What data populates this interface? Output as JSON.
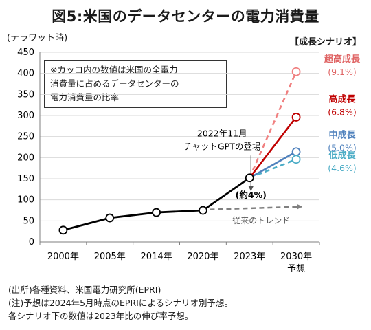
{
  "title": "図5:米国のデータセンターの電力消費量",
  "unit_label": "(テラワット時)",
  "scenario_header": "【成長シナリオ】",
  "note_box": [
    "※カッコ内の数値は米国の全電力",
    "消費量に占めるデータセンターの",
    "電力消費量の比率"
  ],
  "footnotes": [
    "(出所)各種資料、米国電力研究所(EPRI)",
    "(注)予想は2024年5月時点のEPRIによるシナリオ別予想。",
    "各シナリオ下の数値は2023年比の伸び率予想。"
  ],
  "chart_data": {
    "type": "line",
    "categories": [
      "2000年",
      "2005年",
      "2014年",
      "2020年",
      "2023年",
      "2030年"
    ],
    "category_sublabels": [
      "",
      "",
      "",
      "",
      "",
      "予想"
    ],
    "ylim": [
      0,
      450
    ],
    "yticks": [
      0,
      50,
      100,
      150,
      200,
      250,
      300,
      350,
      400,
      450
    ],
    "grid": true,
    "series": [
      {
        "name": "",
        "values": [
          28,
          57,
          70,
          75,
          152,
          null
        ],
        "color": "#000000",
        "style": "solid"
      },
      {
        "name": "超高成長",
        "label": "(9.1%)",
        "values": [
          null,
          null,
          null,
          null,
          152,
          404
        ],
        "color": "#f08080",
        "style": "dashed"
      },
      {
        "name": "高成長",
        "label": "(6.8%)",
        "values": [
          null,
          null,
          null,
          null,
          152,
          296
        ],
        "color": "#c00000",
        "style": "solid"
      },
      {
        "name": "中成長",
        "label": "(5.0%)",
        "values": [
          null,
          null,
          null,
          null,
          152,
          214
        ],
        "color": "#4f81bd",
        "style": "solid"
      },
      {
        "name": "低成長",
        "label": "(4.6%)",
        "values": [
          null,
          null,
          null,
          null,
          152,
          196
        ],
        "color": "#4bacc6",
        "style": "dashed"
      }
    ],
    "trend": {
      "label": "従来のトレンド",
      "from": {
        "x": "2020年",
        "y": 77
      },
      "to_y": 84,
      "color": "#808080"
    },
    "annotations": {
      "gpt_lines": [
        "2022年11月",
        "チャットGPTの登場"
      ],
      "gpt_value": 122,
      "share_2023": "(約4%)"
    }
  }
}
